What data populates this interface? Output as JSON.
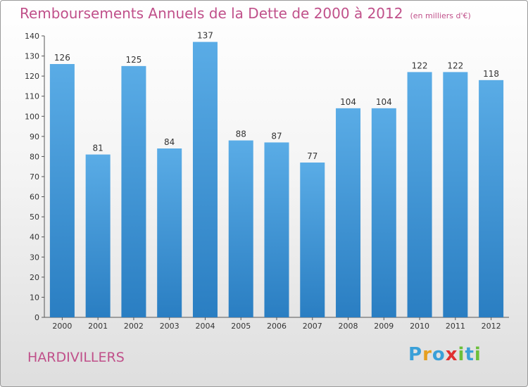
{
  "title": "Remboursements Annuels de la Dette de 2000 à 2012",
  "unit": "(en milliers d'€)",
  "place": "HARDIVILLERS",
  "logo": {
    "text": "Proxiti",
    "letters": [
      {
        "ch": "P",
        "color": "#3aa0d8"
      },
      {
        "ch": "r",
        "color": "#e6a020"
      },
      {
        "ch": "o",
        "color": "#3aa0d8"
      },
      {
        "ch": "x",
        "color": "#e03030"
      },
      {
        "ch": "i",
        "color": "#6cbf3a"
      },
      {
        "ch": "t",
        "color": "#3aa0d8"
      },
      {
        "ch": "i",
        "color": "#6cbf3a"
      }
    ]
  },
  "colors": {
    "bar_top": "#5aace6",
    "bar_bottom": "#2a7ec2",
    "accent": "#c0508a"
  },
  "chart_data": {
    "type": "bar",
    "categories": [
      "2000",
      "2001",
      "2002",
      "2003",
      "2004",
      "2005",
      "2006",
      "2007",
      "2008",
      "2009",
      "2010",
      "2011",
      "2012"
    ],
    "values": [
      126,
      81,
      125,
      84,
      137,
      88,
      87,
      77,
      104,
      104,
      122,
      122,
      118
    ],
    "data_labels": [
      "126",
      "81",
      "125",
      "84",
      "137",
      "88",
      "87",
      "77",
      "104",
      "104",
      "122",
      "122",
      "118"
    ],
    "yticks": [
      "0",
      "10",
      "20",
      "30",
      "40",
      "50",
      "60",
      "70",
      "80",
      "90",
      "100",
      "110",
      "120",
      "130",
      "140"
    ],
    "ylim": [
      0,
      140
    ],
    "grid": false
  }
}
